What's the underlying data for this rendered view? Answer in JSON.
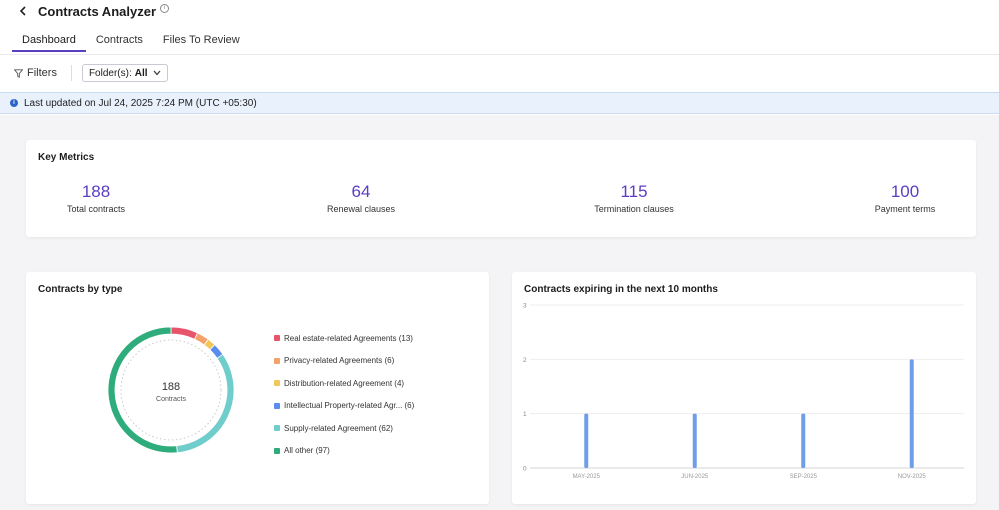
{
  "header": {
    "title": "Contracts Analyzer"
  },
  "tabs": [
    {
      "label": "Dashboard",
      "active": true
    },
    {
      "label": "Files To Review",
      "active": false
    }
  ],
  "tab_contracts": "Contracts",
  "filters": {
    "label": "Filters",
    "folder_label": "Folder(s):",
    "folder_value": "All"
  },
  "banner": {
    "text": "Last updated on Jul 24, 2025 7:24 PM (UTC +05:30)"
  },
  "key_metrics": {
    "title": "Key Metrics",
    "items": [
      {
        "value": "188",
        "label": "Total contracts"
      },
      {
        "value": "64",
        "label": "Renewal clauses"
      },
      {
        "value": "115",
        "label": "Termination clauses"
      },
      {
        "value": "100",
        "label": "Payment terms"
      }
    ]
  },
  "contracts_by_type": {
    "title": "Contracts by type",
    "center_value": "188",
    "center_label": "Contracts",
    "legend": [
      {
        "label": "Real estate-related Agreements (13)",
        "value": 13,
        "color": "#e8556b"
      },
      {
        "label": "Privacy-related Agreements (6)",
        "value": 6,
        "color": "#f4a26b"
      },
      {
        "label": "Distribution-related Agreement (4)",
        "value": 4,
        "color": "#f2c759"
      },
      {
        "label": "Intellectual Property-related Agr... (6)",
        "value": 6,
        "color": "#5b8def"
      },
      {
        "label": "Supply-related Agreement (62)",
        "value": 62,
        "color": "#6fcdcb"
      },
      {
        "label": "All other (97)",
        "value": 97,
        "color": "#2eac7c"
      }
    ]
  },
  "chart_data": {
    "type": "bar",
    "title": "Contracts expiring in the next 10 months",
    "categories": [
      "MAY-2025",
      "JUN-2025",
      "SEP-2025",
      "NOV-2025"
    ],
    "values": [
      1,
      1,
      1,
      2
    ],
    "ylim": [
      0,
      3
    ],
    "yticks": [
      0,
      1,
      2,
      3
    ],
    "grid": true,
    "bar_color": "#6e9ee8",
    "xlabel": "",
    "ylabel": ""
  }
}
